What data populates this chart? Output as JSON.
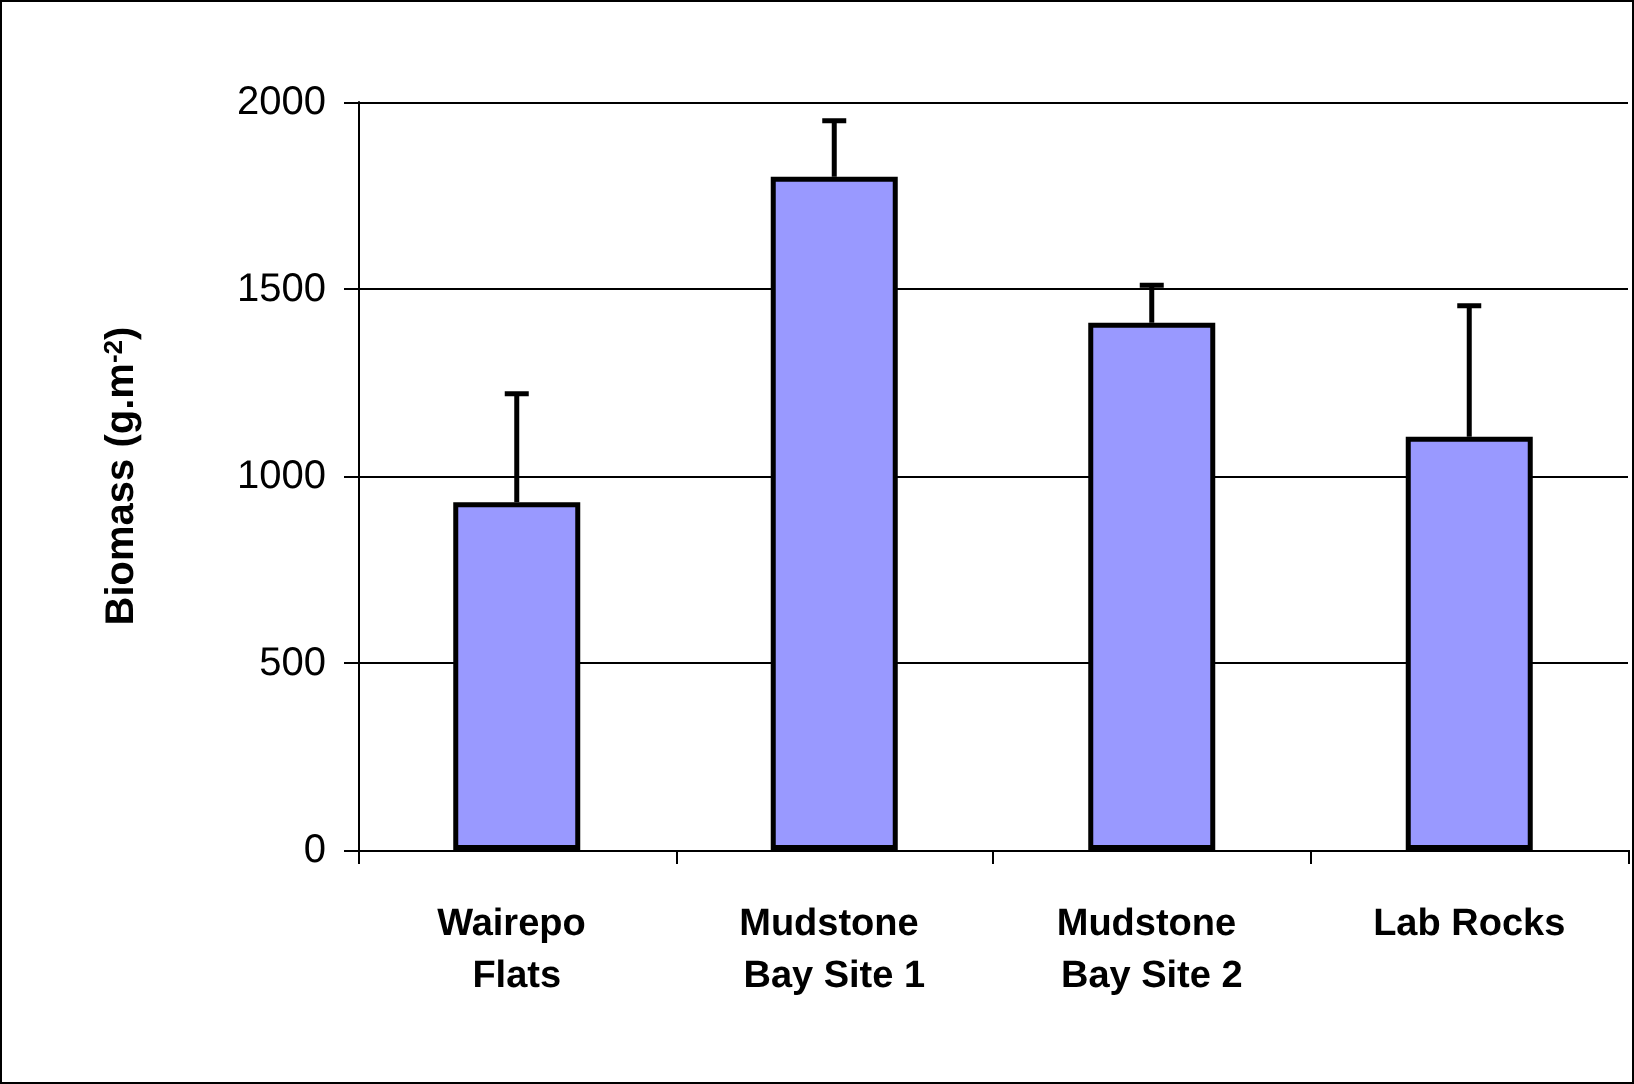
{
  "chart_data": {
    "type": "bar",
    "ylabel": "Biomass (g.m$^{-2}$)",
    "categories": [
      "Wairepo Flats",
      "Mudstone Bay Site 1",
      "Mudstone Bay Site 2",
      "Lab Rocks"
    ],
    "values": [
      930,
      1800,
      1410,
      1105
    ],
    "errors": [
      [
        930,
        1220
      ],
      [
        1800,
        1950
      ],
      [
        1410,
        1510
      ],
      [
        1105,
        1455
      ]
    ],
    "color": "#9999ff",
    "ylim": [
      0,
      2000
    ],
    "yticks": [
      0,
      500,
      1000,
      1500,
      2000
    ],
    "grid": "y"
  }
}
